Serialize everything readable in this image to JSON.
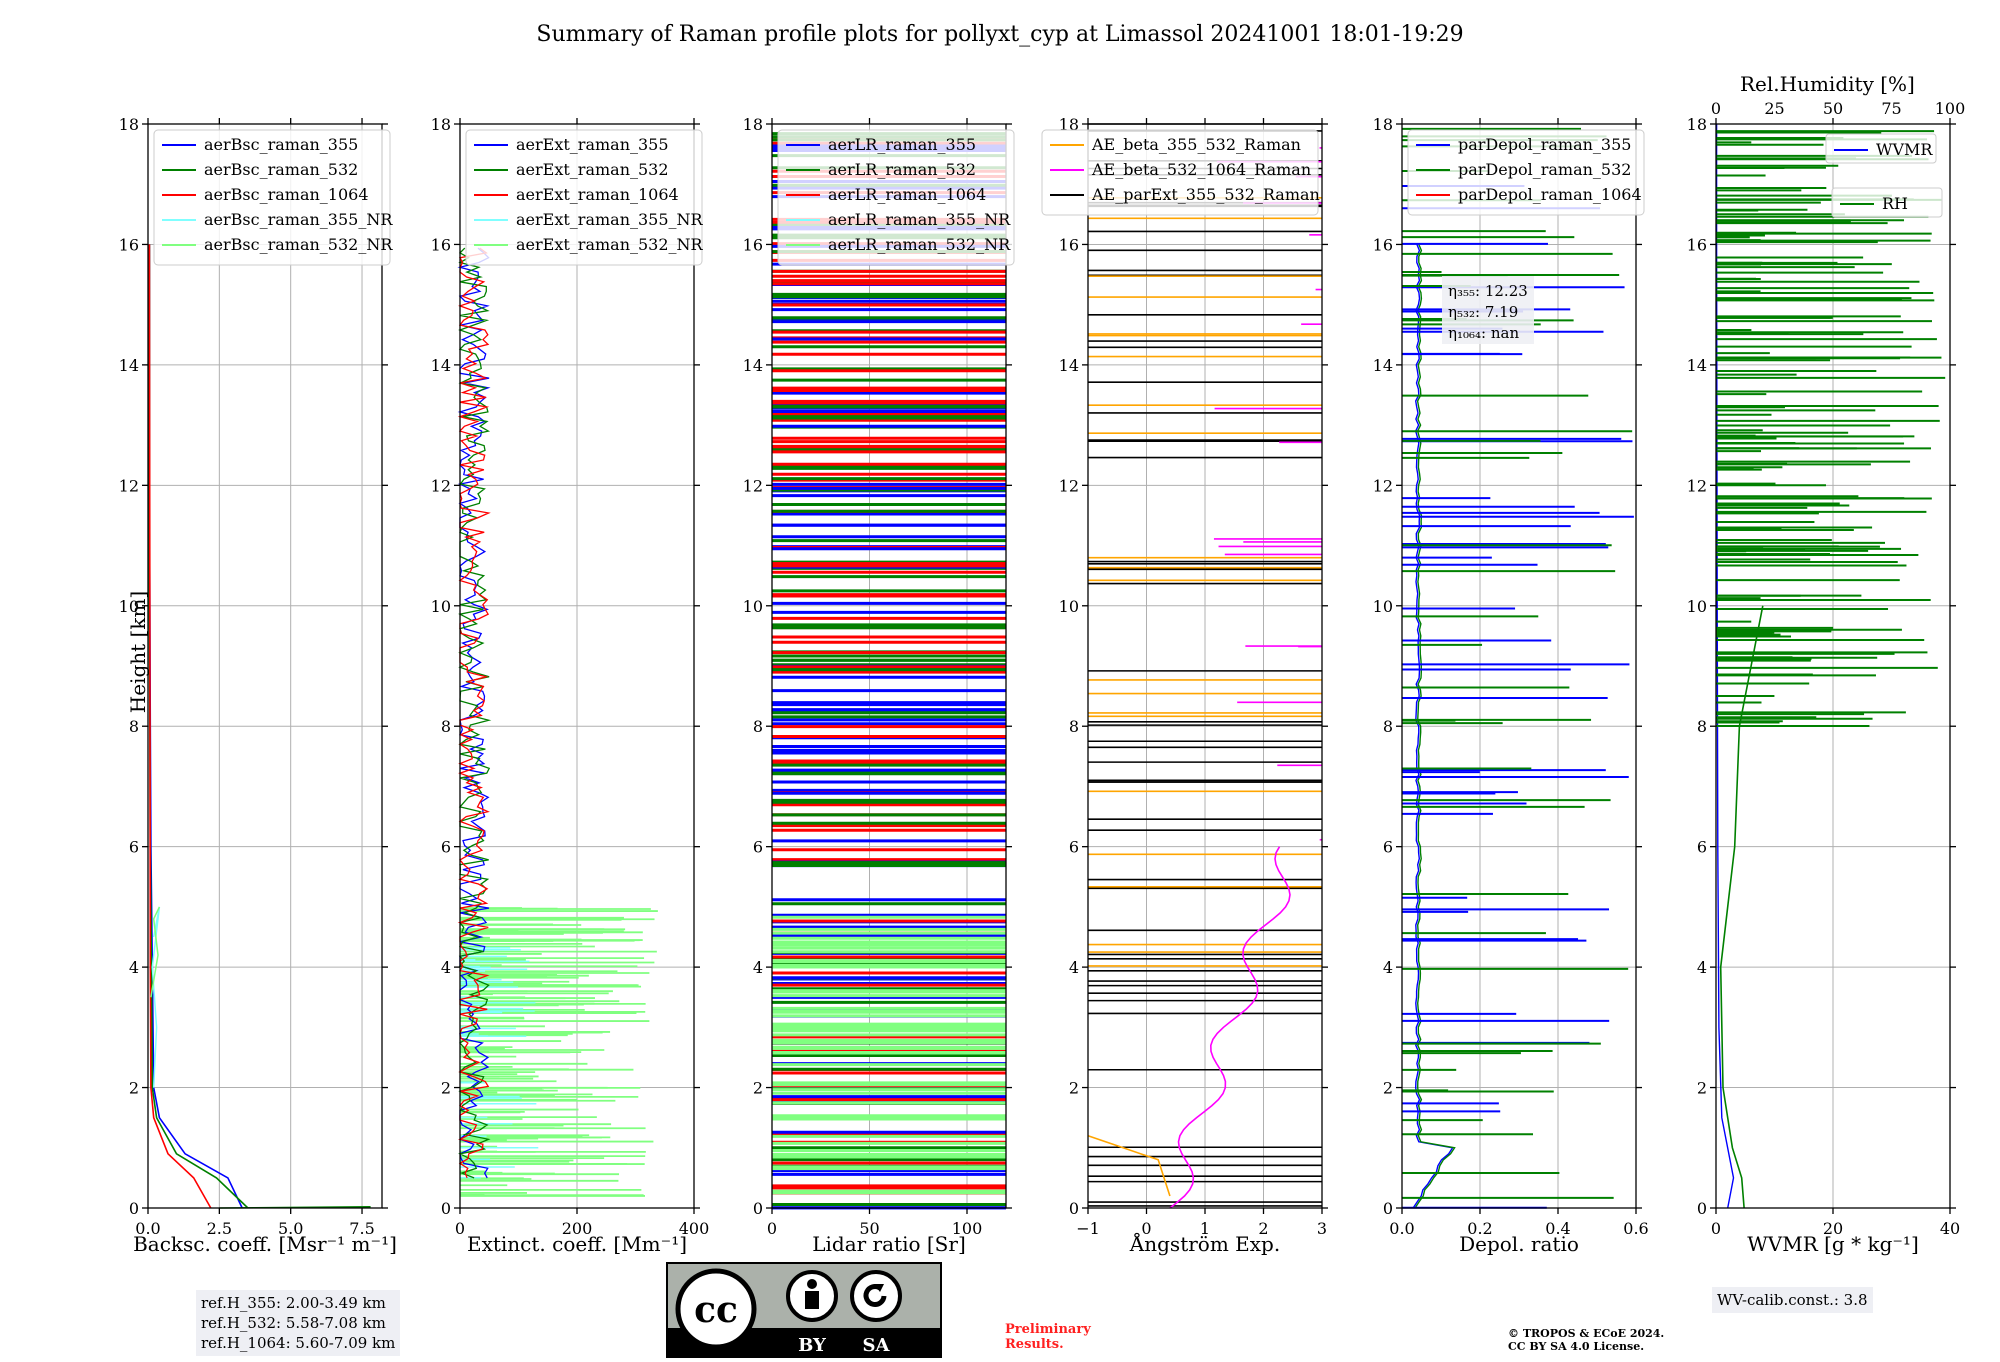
{
  "title": "Summary of Raman profile plots for pollyxt_cyp at Limassol 20241001 18:01-19:29",
  "ylabel": "Height [km]",
  "yticks": [
    "0",
    "2",
    "4",
    "6",
    "8",
    "10",
    "12",
    "14",
    "16",
    "18"
  ],
  "panels": [
    {
      "id": "bsc",
      "xlabel": "Backsc. coeff. [Msr⁻¹ m⁻¹]",
      "xticks": [
        "0.0",
        "2.5",
        "5.0",
        "7.5"
      ],
      "xlim": [
        0,
        8.2
      ],
      "legend": [
        {
          "label": "aerBsc_raman_355",
          "color": "#0000ff"
        },
        {
          "label": "aerBsc_raman_532",
          "color": "#008000"
        },
        {
          "label": "aerBsc_raman_1064",
          "color": "#ff0000"
        },
        {
          "label": "aerBsc_raman_355_NR",
          "color": "#80ffff"
        },
        {
          "label": "aerBsc_raman_532_NR",
          "color": "#80ff80"
        }
      ]
    },
    {
      "id": "ext",
      "xlabel": "Extinct. coeff. [Mm⁻¹]",
      "xticks": [
        "0",
        "200",
        "400"
      ],
      "xlim": [
        0,
        400
      ],
      "legend": [
        {
          "label": "aerExt_raman_355",
          "color": "#0000ff"
        },
        {
          "label": "aerExt_raman_532",
          "color": "#008000"
        },
        {
          "label": "aerExt_raman_1064",
          "color": "#ff0000"
        },
        {
          "label": "aerExt_raman_355_NR",
          "color": "#80ffff"
        },
        {
          "label": "aerExt_raman_532_NR",
          "color": "#80ff80"
        }
      ]
    },
    {
      "id": "lr",
      "xlabel": "Lidar ratio [Sr]",
      "xticks": [
        "0",
        "50",
        "100"
      ],
      "xlim": [
        0,
        120
      ],
      "legend": [
        {
          "label": "aerLR_raman_355",
          "color": "#0000ff"
        },
        {
          "label": "aerLR_raman_532",
          "color": "#008000"
        },
        {
          "label": "aerLR_raman_1064",
          "color": "#ff0000"
        },
        {
          "label": "aerLR_raman_355_NR",
          "color": "#80ffff"
        },
        {
          "label": "aerLR_raman_532_NR",
          "color": "#80ff80"
        }
      ]
    },
    {
      "id": "ae",
      "xlabel": "Ångström Exp.",
      "xticks": [
        "−1",
        "0",
        "1",
        "2",
        "3"
      ],
      "xlim": [
        -1,
        3
      ],
      "legend": [
        {
          "label": "AE_beta_355_532_Raman",
          "color": "#ffa500"
        },
        {
          "label": "AE_beta_532_1064_Raman",
          "color": "#ff00ff"
        },
        {
          "label": "AE_parExt_355_532_Raman",
          "color": "#000000"
        }
      ]
    },
    {
      "id": "dep",
      "xlabel": "Depol. ratio",
      "xticks": [
        "0.0",
        "0.2",
        "0.4",
        "0.6"
      ],
      "xlim": [
        0,
        0.6
      ],
      "legend": [
        {
          "label": "parDepol_raman_355",
          "color": "#0000ff"
        },
        {
          "label": "parDepol_raman_532",
          "color": "#008000"
        },
        {
          "label": "parDepol_raman_1064",
          "color": "#ff0000"
        }
      ]
    },
    {
      "id": "wv",
      "xlabel": "WVMR [g * kg⁻¹]",
      "xticks": [
        "0",
        "20",
        "40"
      ],
      "xlim": [
        0,
        40
      ],
      "legend": [
        {
          "label": "WVMR",
          "color": "#0000ff"
        },
        {
          "label": "RH",
          "color": "#008000"
        }
      ]
    }
  ],
  "rh_axis": {
    "title": "Rel.Humidity [%]",
    "ticks": [
      "0",
      "25",
      "50",
      "75",
      "100"
    ]
  },
  "eta_box": {
    "l1": "η₃₅₅: 12.23",
    "l2": "η₅₃₂: 7.19",
    "l3": "η₁₀₆₄: nan"
  },
  "ref_box": {
    "l1": "ref.H_355: 2.00-3.49 km",
    "l2": "ref.H_532: 5.58-7.08 km",
    "l3": "ref.H_1064: 5.60-7.09 km"
  },
  "wv_box": "WV-calib.const.: 3.8",
  "preliminary": [
    "Preliminary",
    "Results."
  ],
  "copyright": [
    "© TROPOS & ECoE 2024.",
    "CC BY SA 4.0 License."
  ],
  "cc_badge": {
    "left": "BY",
    "right": "SA",
    "logo": "cc"
  },
  "chart_data": {
    "type": "line",
    "title": "Summary of Raman profile plots for pollyxt_cyp at Limassol 20241001 18:01-19:29",
    "ylabel": "Height [km]",
    "ylim": [
      0,
      18
    ],
    "series": [
      {
        "name": "aerBsc_raman_355",
        "x": [
          3.3,
          2.8,
          1.3,
          0.4,
          0.2,
          0.15,
          0.1,
          0.08,
          0.05,
          0.05
        ],
        "y": [
          0,
          0.5,
          0.9,
          1.5,
          2,
          4,
          6,
          8,
          12,
          16
        ]
      },
      {
        "name": "aerBsc_raman_532",
        "x": [
          3.5,
          2.4,
          1.0,
          0.3,
          0.15,
          0.12,
          0.08,
          0.05,
          0.05
        ],
        "y": [
          0,
          0.5,
          0.9,
          1.5,
          2,
          4,
          6,
          10,
          16
        ]
      },
      {
        "name": "aerBsc_raman_1064",
        "x": [
          2.2,
          1.6,
          0.7,
          0.2,
          0.1,
          0.08,
          0.05
        ],
        "y": [
          0,
          0.5,
          0.9,
          1.5,
          2,
          4,
          16
        ]
      },
      {
        "name": "RH",
        "x": [
          12,
          11,
          7,
          3,
          2,
          5,
          8,
          10,
          15,
          20
        ],
        "y": [
          0,
          0.5,
          1,
          2,
          4,
          5,
          6,
          8,
          9,
          10
        ]
      }
    ]
  }
}
